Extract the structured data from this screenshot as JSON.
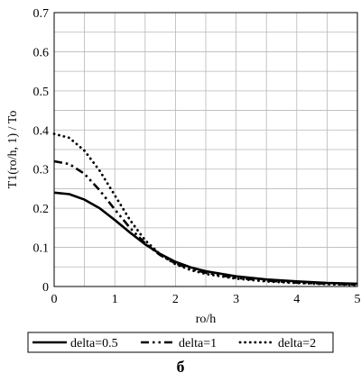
{
  "chart_data": {
    "type": "line",
    "xlabel": "ro/h",
    "ylabel": "T1(ro/h, 1) / To",
    "xlim": [
      0,
      5
    ],
    "ylim": [
      0,
      0.7
    ],
    "xticks": [
      "0",
      "1",
      "2",
      "3",
      "4",
      "5"
    ],
    "yticks": [
      "0",
      "0.1",
      "0.2",
      "0.3",
      "0.4",
      "0.5",
      "0.6",
      "0.7"
    ],
    "grid": true,
    "legend_position": "bottom",
    "panel_label": "б",
    "series": [
      {
        "name": "delta=0.5",
        "line_style": "solid",
        "points": [
          [
            0,
            0.24
          ],
          [
            0.25,
            0.236
          ],
          [
            0.5,
            0.222
          ],
          [
            0.75,
            0.2
          ],
          [
            1,
            0.17
          ],
          [
            1.25,
            0.138
          ],
          [
            1.5,
            0.108
          ],
          [
            1.75,
            0.083
          ],
          [
            2,
            0.063
          ],
          [
            2.25,
            0.049
          ],
          [
            2.5,
            0.039
          ],
          [
            3,
            0.026
          ],
          [
            3.5,
            0.018
          ],
          [
            4,
            0.013
          ],
          [
            4.5,
            0.009
          ],
          [
            5,
            0.007
          ]
        ]
      },
      {
        "name": "delta=1",
        "line_style": "dash-dot-dot",
        "points": [
          [
            0,
            0.32
          ],
          [
            0.25,
            0.313
          ],
          [
            0.5,
            0.288
          ],
          [
            0.75,
            0.246
          ],
          [
            1,
            0.197
          ],
          [
            1.25,
            0.15
          ],
          [
            1.5,
            0.11
          ],
          [
            1.75,
            0.08
          ],
          [
            2,
            0.059
          ],
          [
            2.25,
            0.045
          ],
          [
            2.5,
            0.035
          ],
          [
            3,
            0.022
          ],
          [
            3.5,
            0.015
          ],
          [
            4,
            0.01
          ],
          [
            4.5,
            0.007
          ],
          [
            5,
            0.005
          ]
        ]
      },
      {
        "name": "delta=2",
        "line_style": "dotted",
        "points": [
          [
            0,
            0.39
          ],
          [
            0.25,
            0.38
          ],
          [
            0.5,
            0.347
          ],
          [
            0.75,
            0.296
          ],
          [
            1,
            0.233
          ],
          [
            1.25,
            0.17
          ],
          [
            1.5,
            0.118
          ],
          [
            1.75,
            0.082
          ],
          [
            2,
            0.057
          ],
          [
            2.25,
            0.042
          ],
          [
            2.5,
            0.032
          ],
          [
            3,
            0.02
          ],
          [
            3.5,
            0.013
          ],
          [
            4,
            0.009
          ],
          [
            4.5,
            0.006
          ],
          [
            5,
            0.004
          ]
        ]
      }
    ]
  }
}
